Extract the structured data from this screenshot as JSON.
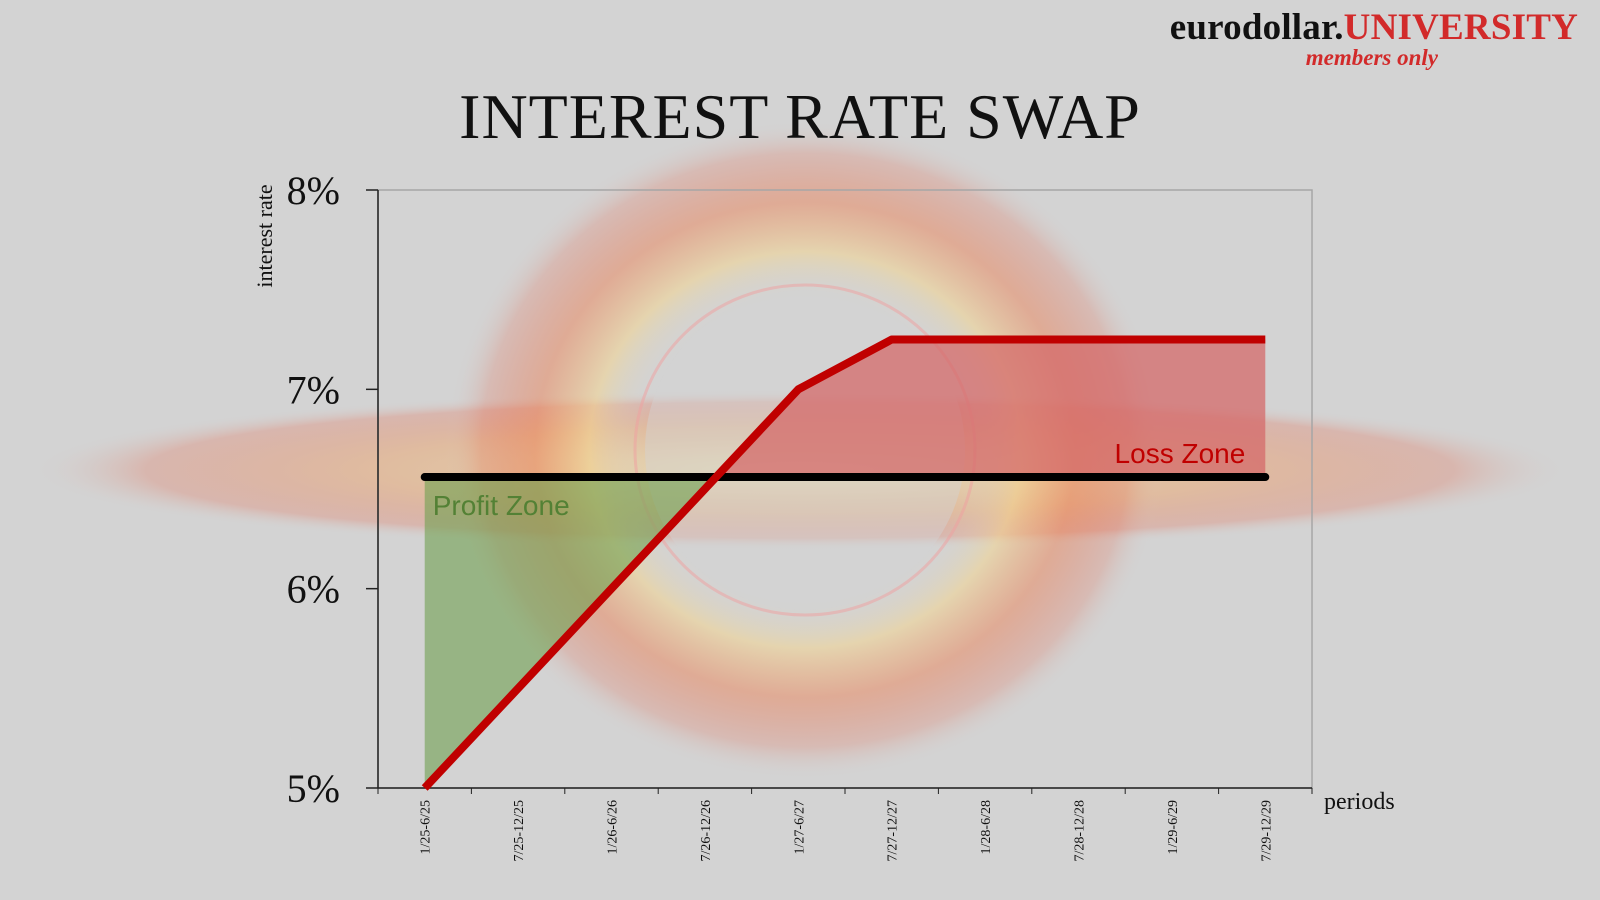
{
  "brand": {
    "name_part1": "eurodollar.",
    "name_part2": "UNIVERSITY",
    "tagline": "members only"
  },
  "chart_data": {
    "type": "line",
    "title": "INTEREST RATE SWAP",
    "xlabel": "periods",
    "ylabel": "interest rate",
    "categories": [
      "1/25-6/25",
      "7/25-12/25",
      "1/26-6/26",
      "7/26-12/26",
      "1/27-6/27",
      "7/27-12/27",
      "1/28-6/28",
      "7/28-12/28",
      "1/29-6/29",
      "7/29-12/29"
    ],
    "ylim": [
      5,
      8
    ],
    "yticks": [
      5,
      6,
      7,
      8
    ],
    "ytick_labels": [
      "5%",
      "6%",
      "7%",
      "8%"
    ],
    "grid": false,
    "series": [
      {
        "values": [
          5.0,
          5.5,
          6.0,
          6.5,
          7.0,
          7.25,
          7.25,
          7.25,
          7.25,
          7.25
        ],
        "color": "#c00000"
      },
      {
        "values": [
          6.56,
          6.56,
          6.56,
          6.56,
          6.56,
          6.56,
          6.56,
          6.56,
          6.56,
          6.56
        ],
        "color": "#000000"
      }
    ],
    "annotations": [
      {
        "text": "Profit Zone",
        "color": "#538135"
      },
      {
        "text": "Loss Zone",
        "color": "#c00000"
      }
    ],
    "profit_fill_color": "#70a050",
    "loss_fill_color": "#d46a6a"
  }
}
